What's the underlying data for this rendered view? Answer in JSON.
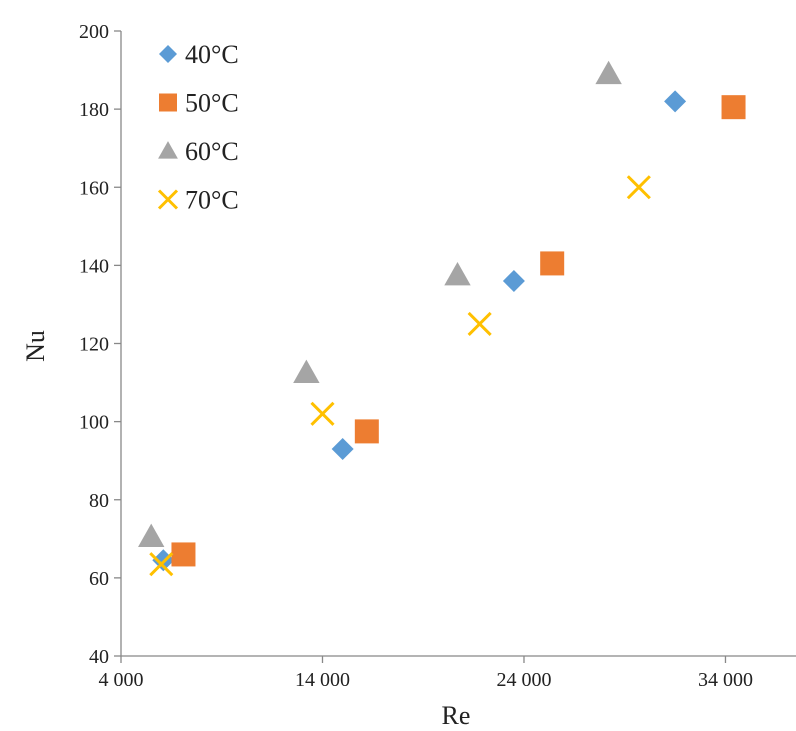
{
  "chart_data": {
    "type": "scatter",
    "xlabel": "Re",
    "ylabel": "Nu",
    "xlim": [
      4000,
      37500
    ],
    "ylim": [
      40,
      200
    ],
    "x_ticks": [
      4000,
      14000,
      24000,
      34000
    ],
    "x_tick_labels": [
      "4 000",
      "14 000",
      "24 000",
      "34 000"
    ],
    "y_ticks": [
      40,
      60,
      80,
      100,
      120,
      140,
      160,
      180,
      200
    ],
    "y_tick_labels": [
      "40",
      "60",
      "80",
      "100",
      "120",
      "140",
      "160",
      "180",
      "200"
    ],
    "grid": false,
    "legend": "top-left",
    "series": [
      {
        "name": "40°C",
        "marker": "diamond",
        "color": "#5b9bd5",
        "points": [
          [
            6100,
            64.5
          ],
          [
            15000,
            93
          ],
          [
            23500,
            136
          ],
          [
            31500,
            182
          ]
        ]
      },
      {
        "name": "50°C",
        "marker": "square",
        "color": "#ed7d31",
        "points": [
          [
            7100,
            66
          ],
          [
            16200,
            97.5
          ],
          [
            25400,
            140.5
          ],
          [
            34400,
            180.5
          ]
        ]
      },
      {
        "name": "60°C",
        "marker": "triangle",
        "color": "#a5a5a5",
        "points": [
          [
            5500,
            70.5
          ],
          [
            13200,
            112.5
          ],
          [
            20700,
            137.5
          ],
          [
            28200,
            189
          ]
        ]
      },
      {
        "name": "70°C",
        "marker": "x",
        "color": "#ffc000",
        "points": [
          [
            6000,
            63.5
          ],
          [
            14000,
            102
          ],
          [
            21800,
            125
          ],
          [
            29700,
            160
          ]
        ]
      }
    ]
  }
}
